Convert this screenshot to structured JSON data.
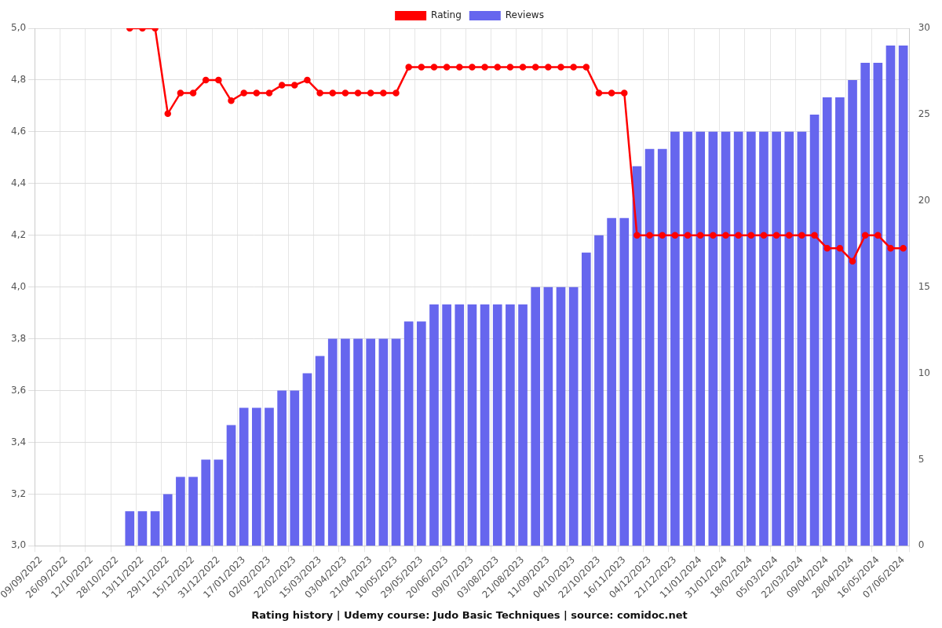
{
  "chart_data": {
    "type": "bar",
    "title": "Rating history | Udemy course: Judo Basic Techniques | source: comidoc.net",
    "categories": [
      "09/09/2022",
      null,
      "26/09/2022",
      null,
      "12/10/2022",
      null,
      "28/10/2022",
      null,
      "13/11/2022",
      null,
      "29/11/2022",
      null,
      "15/12/2022",
      null,
      "31/12/2022",
      null,
      "17/01/2023",
      null,
      "02/02/2023",
      null,
      "22/02/2023",
      null,
      "15/03/2023",
      null,
      "03/04/2023",
      null,
      "21/04/2023",
      null,
      "10/05/2023",
      null,
      "29/05/2023",
      null,
      "20/06/2023",
      null,
      "09/07/2023",
      null,
      "03/08/2023",
      null,
      "21/08/2023",
      null,
      "11/09/2023",
      null,
      "04/10/2023",
      null,
      "22/10/2023",
      null,
      "16/11/2023",
      null,
      "04/12/2023",
      null,
      "21/12/2023",
      null,
      "11/01/2024",
      null,
      "31/01/2024",
      null,
      "18/02/2024",
      null,
      "05/03/2024",
      null,
      "22/03/2024",
      null,
      "09/04/2024",
      null,
      "28/04/2024",
      null,
      "16/05/2024",
      null,
      "07/06/2024"
    ],
    "series": [
      {
        "name": "Rating",
        "type": "line",
        "color": "#ff0000",
        "marker": "circle",
        "values": [
          null,
          null,
          null,
          null,
          null,
          null,
          null,
          5,
          5,
          5,
          4.67,
          4.75,
          4.75,
          4.8,
          4.8,
          4.72,
          4.75,
          4.75,
          4.75,
          4.78,
          4.78,
          4.8,
          4.75,
          4.75,
          4.75,
          4.75,
          4.75,
          4.75,
          4.75,
          4.85,
          4.85,
          4.85,
          4.85,
          4.85,
          4.85,
          4.85,
          4.85,
          4.85,
          4.85,
          4.85,
          4.85,
          4.85,
          4.85,
          4.85,
          4.75,
          4.75,
          4.75,
          4.2,
          4.2,
          4.2,
          4.2,
          4.2,
          4.2,
          4.2,
          4.2,
          4.2,
          4.2,
          4.2,
          4.2,
          4.2,
          4.2,
          4.2,
          4.15,
          4.15,
          4.1,
          4.2,
          4.2,
          4.15,
          4.15
        ]
      },
      {
        "name": "Reviews",
        "type": "bar",
        "color": "#6666ee",
        "axis": "y2",
        "values": [
          null,
          null,
          null,
          null,
          null,
          null,
          null,
          2,
          2,
          2,
          3,
          4,
          4,
          5,
          5,
          7,
          8,
          8,
          8,
          9,
          9,
          10,
          11,
          12,
          12,
          12,
          12,
          12,
          12,
          13,
          13,
          14,
          14,
          14,
          14,
          14,
          14,
          14,
          14,
          15,
          15,
          15,
          15,
          17,
          18,
          19,
          19,
          22,
          23,
          23,
          24,
          24,
          24,
          24,
          24,
          24,
          24,
          24,
          24,
          24,
          24,
          25,
          26,
          26,
          27,
          28,
          28,
          29,
          29
        ]
      }
    ],
    "ylim": [
      3,
      5
    ],
    "yticks": [
      {
        "value": 3,
        "label": "3,0"
      },
      {
        "value": 3.2,
        "label": "3,2"
      },
      {
        "value": 3.4,
        "label": "3,4"
      },
      {
        "value": 3.6,
        "label": "3,6"
      },
      {
        "value": 3.8,
        "label": "3,8"
      },
      {
        "value": 4,
        "label": "4,0"
      },
      {
        "value": 4.2,
        "label": "4,2"
      },
      {
        "value": 4.4,
        "label": "4,4"
      },
      {
        "value": 4.6,
        "label": "4,6"
      },
      {
        "value": 4.8,
        "label": "4,8"
      },
      {
        "value": 5,
        "label": "5,0"
      }
    ],
    "y2lim": [
      0,
      30
    ],
    "y2ticks": [
      0,
      5,
      10,
      15,
      20,
      25,
      30
    ],
    "grid": true,
    "legend": "top"
  }
}
